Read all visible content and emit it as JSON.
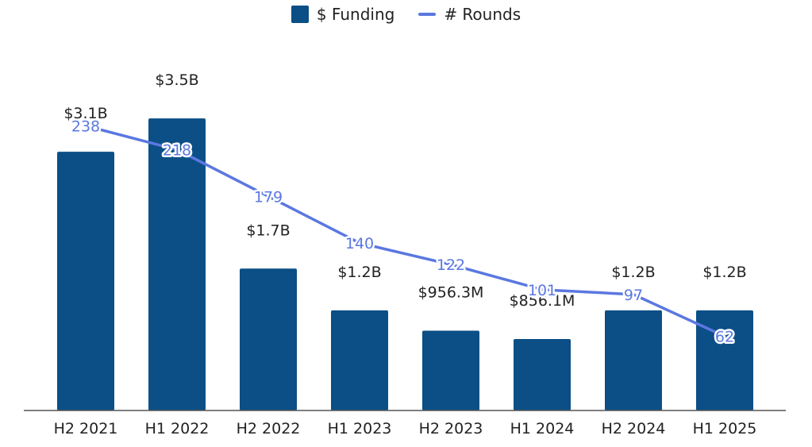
{
  "chart_data": {
    "type": "bar",
    "title": "",
    "xlabel": "",
    "ylabel": "",
    "categories": [
      "H2 2021",
      "H1 2022",
      "H2 2022",
      "H1 2023",
      "H2 2023",
      "H1 2024",
      "H2 2024",
      "H1 2025"
    ],
    "series": [
      {
        "name": "$ Funding",
        "type": "bar",
        "axis": "left",
        "color": "#0b4f86",
        "values": [
          3.1,
          3.5,
          1.7,
          1.2,
          0.9563,
          0.8561,
          1.2,
          1.2
        ],
        "value_labels": [
          "$3.1B",
          "$3.5B",
          "$1.7B",
          "$1.2B",
          "$956.3M",
          "$856.1M",
          "$1.2B",
          "$1.2B"
        ]
      },
      {
        "name": "# Rounds",
        "type": "line",
        "axis": "right",
        "color": "#5b78e0",
        "values": [
          238,
          218,
          179,
          140,
          122,
          101,
          97,
          62
        ],
        "value_labels": [
          "238",
          "218",
          "179",
          "140",
          "122",
          "101",
          "97",
          "62"
        ]
      }
    ],
    "ylim": [
      0,
      4.3
    ],
    "y2lim": [
      0,
      300
    ],
    "grid": false,
    "legend_position": "top-center"
  }
}
